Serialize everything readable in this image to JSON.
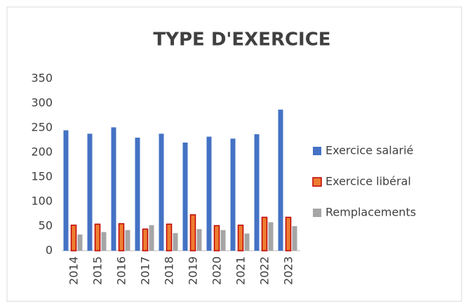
{
  "chart_data": {
    "type": "bar",
    "title": "TYPE D'EXERCICE",
    "categories": [
      "2014",
      "2015",
      "2016",
      "2017",
      "2018",
      "2019",
      "2020",
      "2021",
      "2022",
      "2023"
    ],
    "series": [
      {
        "name": "Exercice salarié",
        "color": "#4472c4",
        "values": [
          245,
          238,
          251,
          230,
          238,
          220,
          232,
          228,
          237,
          287
        ]
      },
      {
        "name": "Exercice libéral",
        "color": "#ed7d31",
        "values": [
          52,
          54,
          55,
          44,
          54,
          73,
          51,
          52,
          68,
          68
        ]
      },
      {
        "name": "Remplacements",
        "color": "#a5a5a5",
        "values": [
          33,
          38,
          42,
          52,
          36,
          44,
          42,
          35,
          58,
          50
        ]
      }
    ],
    "ylim": [
      0,
      350
    ],
    "yticks": [
      0,
      50,
      100,
      150,
      200,
      250,
      300,
      350
    ],
    "grid": false,
    "legend": "right"
  }
}
